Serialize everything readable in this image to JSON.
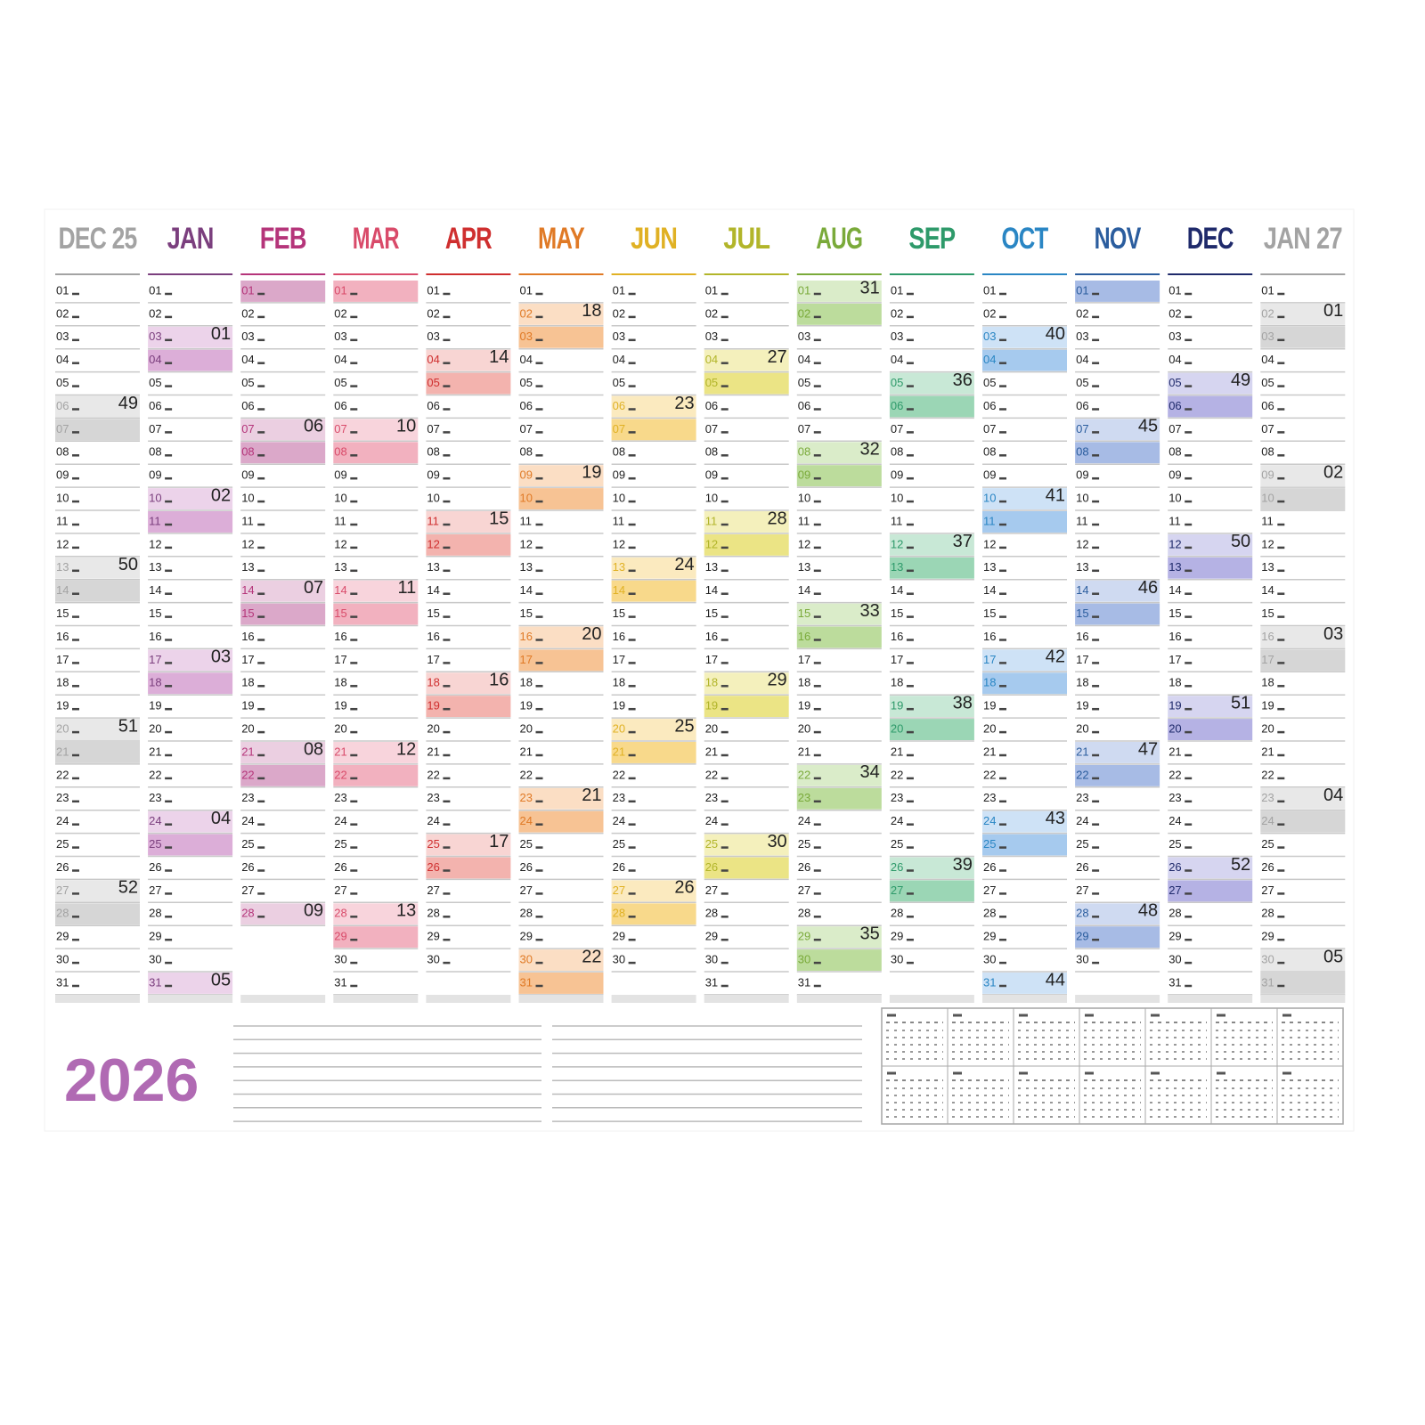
{
  "year": "2026",
  "months": [
    {
      "name": "DEC 25",
      "color": "#a3a3a3",
      "shade": "#d6d6d6",
      "days": [
        "01",
        "02",
        "03",
        "04",
        "05",
        "06",
        "07",
        "08",
        "09",
        "10",
        "11",
        "12",
        "13",
        "14",
        "15",
        "16",
        "17",
        "18",
        "19",
        "20",
        "21",
        "22",
        "23",
        "24",
        "25",
        "26",
        "27",
        "28",
        "29",
        "30",
        "31"
      ],
      "weeks": [
        {
          "day": 6,
          "number": "49"
        },
        {
          "day": 13,
          "number": "50"
        },
        {
          "day": 20,
          "number": "51"
        },
        {
          "day": 27,
          "number": "52"
        }
      ]
    },
    {
      "name": "JAN",
      "color": "#7b3f7e",
      "shade": "#dcaed8",
      "days": [
        "01",
        "02",
        "03",
        "04",
        "05",
        "06",
        "07",
        "08",
        "09",
        "10",
        "11",
        "12",
        "13",
        "14",
        "15",
        "16",
        "17",
        "18",
        "19",
        "20",
        "21",
        "22",
        "23",
        "24",
        "25",
        "26",
        "27",
        "28",
        "29",
        "30",
        "31"
      ],
      "weeks": [
        {
          "day": 3,
          "number": "01"
        },
        {
          "day": 10,
          "number": "02"
        },
        {
          "day": 17,
          "number": "03"
        },
        {
          "day": 24,
          "number": "04"
        },
        {
          "day": 31,
          "number": "05"
        }
      ]
    },
    {
      "name": "FEB",
      "color": "#b5357a",
      "shade": "#dba8c9",
      "days": [
        "01",
        "02",
        "03",
        "04",
        "05",
        "06",
        "07",
        "08",
        "09",
        "10",
        "11",
        "12",
        "13",
        "14",
        "15",
        "16",
        "17",
        "18",
        "19",
        "20",
        "21",
        "22",
        "23",
        "24",
        "25",
        "26",
        "27",
        "28"
      ],
      "weeks": [
        {
          "day": 7,
          "number": "06"
        },
        {
          "day": 14,
          "number": "07"
        },
        {
          "day": 21,
          "number": "08"
        },
        {
          "day": 28,
          "number": "09"
        }
      ]
    },
    {
      "name": "MAR",
      "color": "#d94b6a",
      "shade": "#f2b1bf",
      "days": [
        "01",
        "02",
        "03",
        "04",
        "05",
        "06",
        "07",
        "08",
        "09",
        "10",
        "11",
        "12",
        "13",
        "14",
        "15",
        "16",
        "17",
        "18",
        "19",
        "20",
        "21",
        "22",
        "23",
        "24",
        "25",
        "26",
        "27",
        "28",
        "29",
        "30",
        "31"
      ],
      "weeks": [
        {
          "day": 7,
          "number": "10"
        },
        {
          "day": 14,
          "number": "11"
        },
        {
          "day": 21,
          "number": "12"
        },
        {
          "day": 28,
          "number": "13"
        }
      ]
    },
    {
      "name": "APR",
      "color": "#cf2f2f",
      "shade": "#f3b3ae",
      "days": [
        "01",
        "02",
        "03",
        "04",
        "05",
        "06",
        "07",
        "08",
        "09",
        "10",
        "11",
        "12",
        "13",
        "14",
        "15",
        "16",
        "17",
        "18",
        "19",
        "20",
        "21",
        "22",
        "23",
        "24",
        "25",
        "26",
        "27",
        "28",
        "29",
        "30"
      ],
      "weeks": [
        {
          "day": 4,
          "number": "14"
        },
        {
          "day": 11,
          "number": "15"
        },
        {
          "day": 18,
          "number": "16"
        },
        {
          "day": 25,
          "number": "17"
        }
      ]
    },
    {
      "name": "MAY",
      "color": "#e07a26",
      "shade": "#f7c394",
      "days": [
        "01",
        "02",
        "03",
        "04",
        "05",
        "06",
        "07",
        "08",
        "09",
        "10",
        "11",
        "12",
        "13",
        "14",
        "15",
        "16",
        "17",
        "18",
        "19",
        "20",
        "21",
        "22",
        "23",
        "24",
        "25",
        "26",
        "27",
        "28",
        "29",
        "30",
        "31"
      ],
      "weeks": [
        {
          "day": 2,
          "number": "18"
        },
        {
          "day": 9,
          "number": "19"
        },
        {
          "day": 16,
          "number": "20"
        },
        {
          "day": 23,
          "number": "21"
        },
        {
          "day": 30,
          "number": "22"
        }
      ]
    },
    {
      "name": "JUN",
      "color": "#e0b124",
      "shade": "#f8d98b",
      "days": [
        "01",
        "02",
        "03",
        "04",
        "05",
        "06",
        "07",
        "08",
        "09",
        "10",
        "11",
        "12",
        "13",
        "14",
        "15",
        "16",
        "17",
        "18",
        "19",
        "20",
        "21",
        "22",
        "23",
        "24",
        "25",
        "26",
        "27",
        "28",
        "29",
        "30"
      ],
      "weeks": [
        {
          "day": 6,
          "number": "23"
        },
        {
          "day": 13,
          "number": "24"
        },
        {
          "day": 20,
          "number": "25"
        },
        {
          "day": 27,
          "number": "26"
        }
      ]
    },
    {
      "name": "JUL",
      "color": "#b2b52a",
      "shade": "#ebe485",
      "days": [
        "01",
        "02",
        "03",
        "04",
        "05",
        "06",
        "07",
        "08",
        "09",
        "10",
        "11",
        "12",
        "13",
        "14",
        "15",
        "16",
        "17",
        "18",
        "19",
        "20",
        "21",
        "22",
        "23",
        "24",
        "25",
        "26",
        "27",
        "28",
        "29",
        "30",
        "31"
      ],
      "weeks": [
        {
          "day": 4,
          "number": "27"
        },
        {
          "day": 11,
          "number": "28"
        },
        {
          "day": 18,
          "number": "29"
        },
        {
          "day": 25,
          "number": "30"
        }
      ]
    },
    {
      "name": "AUG",
      "color": "#7aaa3a",
      "shade": "#bcdc9c",
      "days": [
        "01",
        "02",
        "03",
        "04",
        "05",
        "06",
        "07",
        "08",
        "09",
        "10",
        "11",
        "12",
        "13",
        "14",
        "15",
        "16",
        "17",
        "18",
        "19",
        "20",
        "21",
        "22",
        "23",
        "24",
        "25",
        "26",
        "27",
        "28",
        "29",
        "30",
        "31"
      ],
      "weeks": [
        {
          "day": 1,
          "number": "31"
        },
        {
          "day": 8,
          "number": "32"
        },
        {
          "day": 15,
          "number": "33"
        },
        {
          "day": 22,
          "number": "34"
        },
        {
          "day": 29,
          "number": "35"
        }
      ]
    },
    {
      "name": "SEP",
      "color": "#2e9a6a",
      "shade": "#9bd6b5",
      "days": [
        "01",
        "02",
        "03",
        "04",
        "05",
        "06",
        "07",
        "08",
        "09",
        "10",
        "11",
        "12",
        "13",
        "14",
        "15",
        "16",
        "17",
        "18",
        "19",
        "20",
        "21",
        "22",
        "23",
        "24",
        "25",
        "26",
        "27",
        "28",
        "29",
        "30"
      ],
      "weeks": [
        {
          "day": 5,
          "number": "36"
        },
        {
          "day": 12,
          "number": "37"
        },
        {
          "day": 19,
          "number": "38"
        },
        {
          "day": 26,
          "number": "39"
        }
      ]
    },
    {
      "name": "OCT",
      "color": "#2a86c4",
      "shade": "#a6caee",
      "days": [
        "01",
        "02",
        "03",
        "04",
        "05",
        "06",
        "07",
        "08",
        "09",
        "10",
        "11",
        "12",
        "13",
        "14",
        "15",
        "16",
        "17",
        "18",
        "19",
        "20",
        "21",
        "22",
        "23",
        "24",
        "25",
        "26",
        "27",
        "28",
        "29",
        "30",
        "31"
      ],
      "weeks": [
        {
          "day": 3,
          "number": "40"
        },
        {
          "day": 10,
          "number": "41"
        },
        {
          "day": 17,
          "number": "42"
        },
        {
          "day": 24,
          "number": "43"
        },
        {
          "day": 31,
          "number": "44"
        }
      ]
    },
    {
      "name": "NOV",
      "color": "#2b5d9e",
      "shade": "#a7bbe5",
      "days": [
        "01",
        "02",
        "03",
        "04",
        "05",
        "06",
        "07",
        "08",
        "09",
        "10",
        "11",
        "12",
        "13",
        "14",
        "15",
        "16",
        "17",
        "18",
        "19",
        "20",
        "21",
        "22",
        "23",
        "24",
        "25",
        "26",
        "27",
        "28",
        "29",
        "30"
      ],
      "weeks": [
        {
          "day": 7,
          "number": "45"
        },
        {
          "day": 14,
          "number": "46"
        },
        {
          "day": 21,
          "number": "47"
        },
        {
          "day": 28,
          "number": "48"
        }
      ]
    },
    {
      "name": "DEC",
      "color": "#1f2a6b",
      "shade": "#b5b2e4",
      "days": [
        "01",
        "02",
        "03",
        "04",
        "05",
        "06",
        "07",
        "08",
        "09",
        "10",
        "11",
        "12",
        "13",
        "14",
        "15",
        "16",
        "17",
        "18",
        "19",
        "20",
        "21",
        "22",
        "23",
        "24",
        "25",
        "26",
        "27",
        "28",
        "29",
        "30",
        "31"
      ],
      "weeks": [
        {
          "day": 5,
          "number": "49"
        },
        {
          "day": 12,
          "number": "50"
        },
        {
          "day": 19,
          "number": "51"
        },
        {
          "day": 26,
          "number": "52"
        }
      ]
    },
    {
      "name": "JAN 27",
      "color": "#a3a3a3",
      "shade": "#d6d6d6",
      "days": [
        "01",
        "02",
        "03",
        "04",
        "05",
        "06",
        "07",
        "08",
        "09",
        "10",
        "11",
        "12",
        "13",
        "14",
        "15",
        "16",
        "17",
        "18",
        "19",
        "20",
        "21",
        "22",
        "23",
        "24",
        "25",
        "26",
        "27",
        "28",
        "29",
        "30",
        "31"
      ],
      "weeks": [
        {
          "day": 2,
          "number": "01"
        },
        {
          "day": 9,
          "number": "02"
        },
        {
          "day": 16,
          "number": "03"
        },
        {
          "day": 23,
          "number": "04"
        },
        {
          "day": 30,
          "number": "05"
        }
      ]
    }
  ]
}
